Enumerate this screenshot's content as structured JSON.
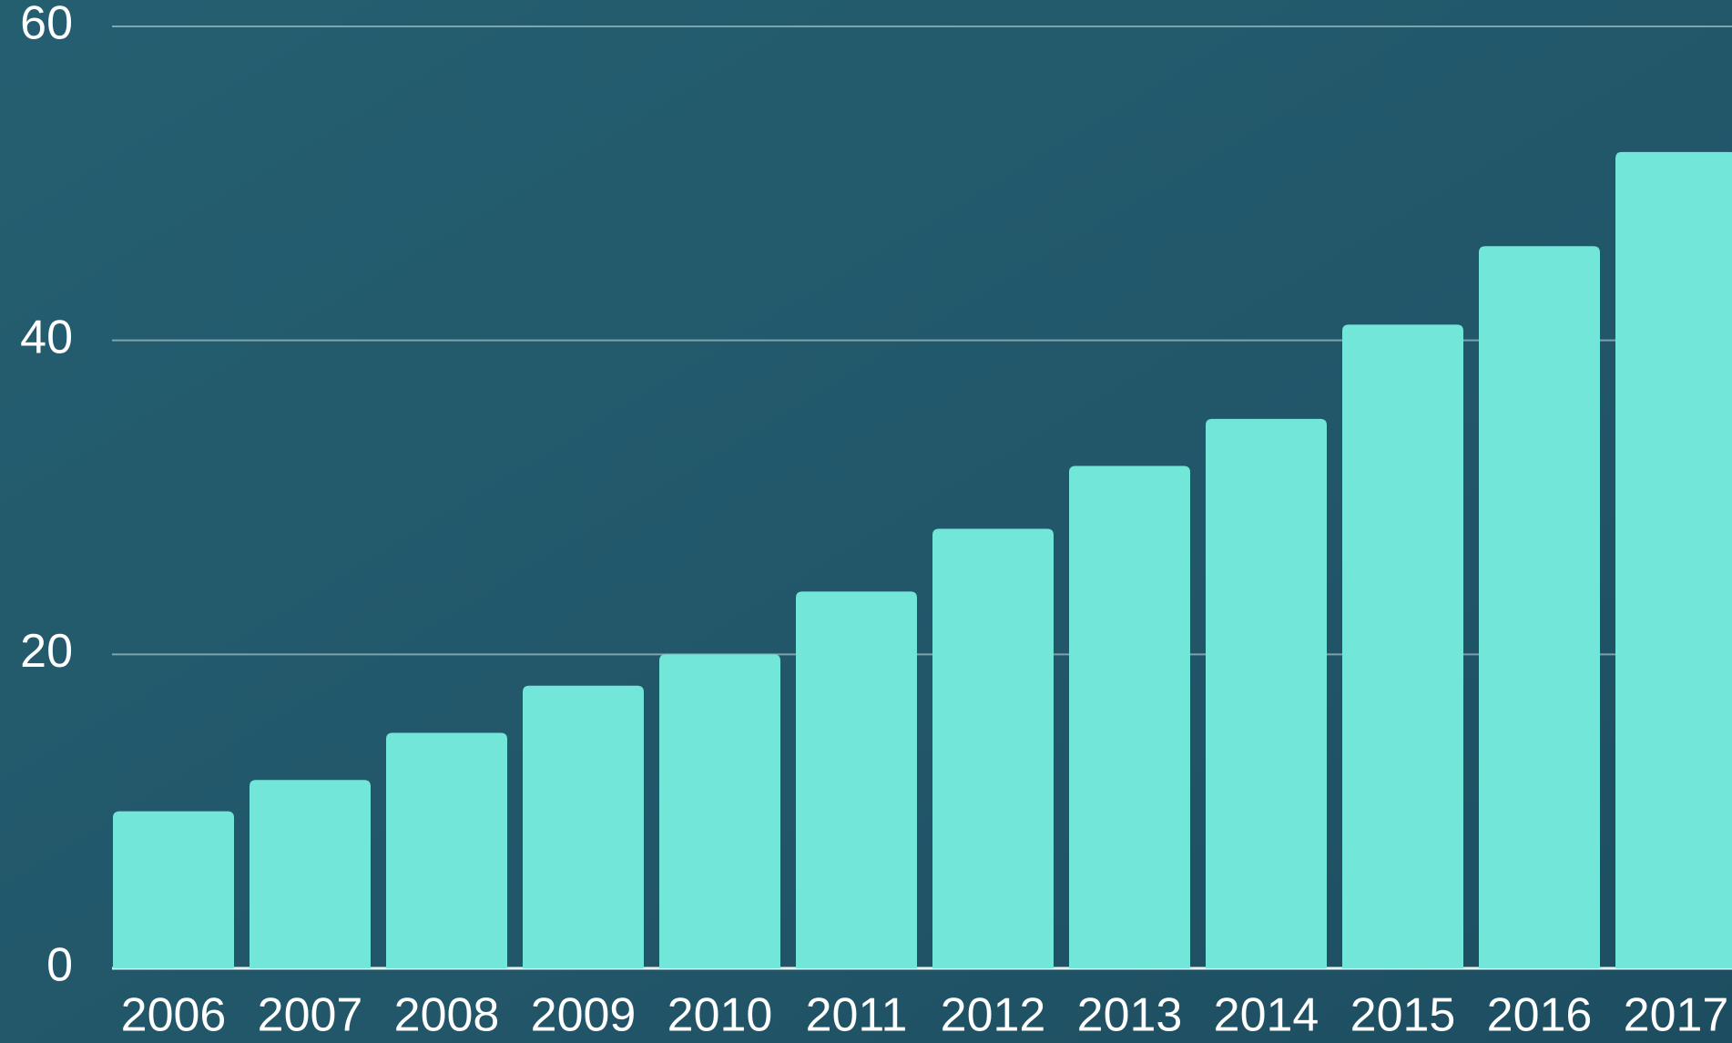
{
  "chart_data": {
    "type": "bar",
    "categories": [
      "2006",
      "2007",
      "2008",
      "2009",
      "2010",
      "2011",
      "2012",
      "2013",
      "2014",
      "2015",
      "2016",
      "2017"
    ],
    "values": [
      10,
      12,
      15,
      18,
      20,
      24,
      28,
      32,
      35,
      41,
      46,
      52
    ],
    "color": "#72e6d9",
    "ylim": [
      0,
      60
    ],
    "yticks": [
      0,
      20,
      40,
      60
    ],
    "grid": true
  }
}
